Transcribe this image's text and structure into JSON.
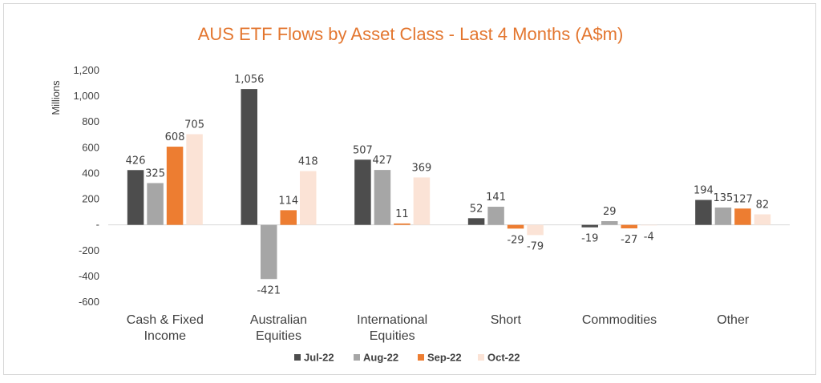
{
  "chart_data": {
    "type": "bar",
    "title": "AUS ETF Flows by Asset Class - Last 4 Months (A$m)",
    "ylabel": "Millions",
    "xlabel": "",
    "ylim": [
      -600,
      1200
    ],
    "yticks": [
      1200,
      1000,
      800,
      600,
      400,
      200,
      0,
      -200,
      -400,
      -600
    ],
    "ytick_labels": [
      "1,200",
      "1,000",
      "800",
      "600",
      "400",
      "200",
      "-",
      "-200",
      "-400",
      "-600"
    ],
    "categories": [
      [
        "Cash & Fixed",
        "Income"
      ],
      [
        "Australian",
        "Equities"
      ],
      [
        "International",
        "Equities"
      ],
      [
        "Short"
      ],
      [
        "Commodities"
      ],
      [
        "Other"
      ]
    ],
    "series": [
      {
        "name": "Jul-22",
        "color": "#4d4d4d",
        "values": [
          426,
          1056,
          507,
          52,
          -19,
          194
        ],
        "labels": [
          "426",
          "1,056",
          "507",
          "52",
          "-19",
          "194"
        ]
      },
      {
        "name": "Aug-22",
        "color": "#a6a6a6",
        "values": [
          325,
          -421,
          427,
          141,
          29,
          135
        ],
        "labels": [
          "325",
          "-421",
          "427",
          "141",
          "29",
          "135"
        ]
      },
      {
        "name": "Sep-22",
        "color": "#ed7d31",
        "values": [
          608,
          114,
          11,
          -29,
          -27,
          127
        ],
        "labels": [
          "608",
          "114",
          "11",
          "-29",
          "-27",
          "127"
        ]
      },
      {
        "name": "Oct-22",
        "color": "#fbe3d6",
        "values": [
          705,
          418,
          369,
          -79,
          -4,
          82
        ],
        "labels": [
          "705",
          "418",
          "369",
          "-79",
          "-4",
          "82"
        ]
      }
    ],
    "grid": false,
    "legend_position": "bottom"
  }
}
